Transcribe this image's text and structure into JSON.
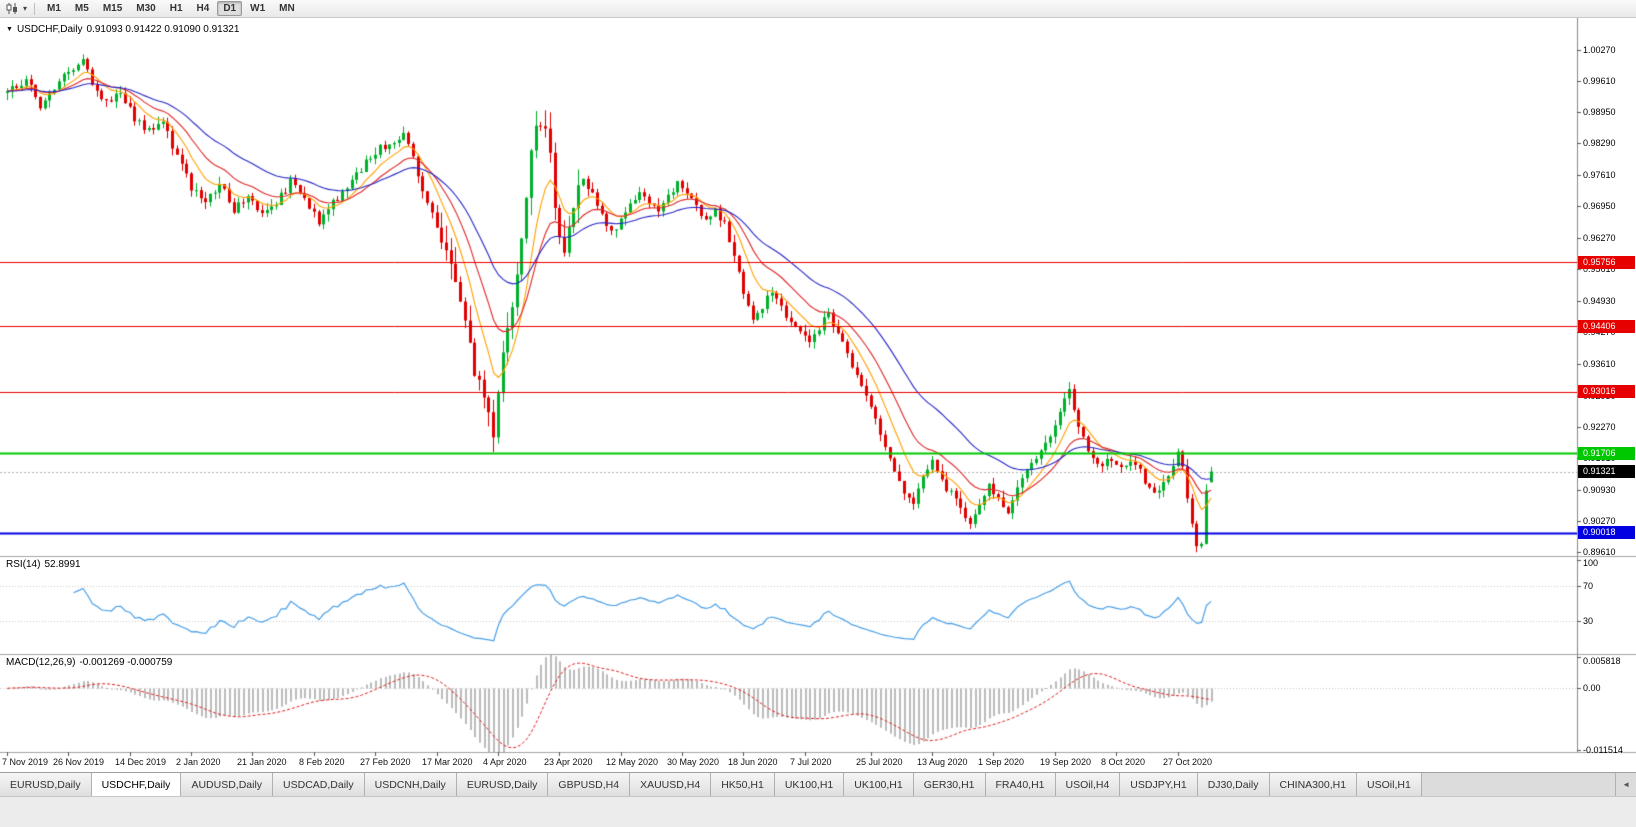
{
  "icons": {
    "chart_menu": "▼",
    "chart_type_caret": "▾",
    "tab_scroll_left": "◄"
  },
  "toolbar": {
    "timeframes": [
      "M1",
      "M5",
      "M15",
      "M30",
      "H1",
      "H4",
      "D1",
      "W1",
      "MN"
    ],
    "active_timeframe": "D1"
  },
  "chart": {
    "title": "USDCHF,Daily",
    "ohlc_text": "0.91093 0.91422 0.91090 0.91321",
    "ohlc": {
      "open": 0.91093,
      "high": 0.91422,
      "low": 0.9109,
      "close": 0.91321
    },
    "current_price_label": "0.91321",
    "price_axis_labels": [
      "1.00270",
      "0.99610",
      "0.98950",
      "0.98290",
      "0.97610",
      "0.96950",
      "0.96270",
      "0.95610",
      "0.94930",
      "0.94270",
      "0.93610",
      "0.92930",
      "0.92270",
      "0.91610",
      "0.90930",
      "0.90270",
      "0.89610"
    ],
    "hlines": [
      {
        "price": 0.95756,
        "label": "0.95756",
        "color": "#e60000",
        "width": 1
      },
      {
        "price": 0.94406,
        "label": "0.94406",
        "color": "#e60000",
        "width": 1
      },
      {
        "price": 0.93016,
        "label": "0.93016",
        "color": "#e60000",
        "width": 1
      },
      {
        "price": 0.91706,
        "label": "0.91706",
        "color": "#00c800",
        "width": 2
      },
      {
        "price": 0.90018,
        "label": "0.90018",
        "color": "#0000e0",
        "width": 2
      }
    ],
    "date_labels": [
      {
        "text": "7 Nov 2019",
        "candle": 0
      },
      {
        "text": "26 Nov 2019",
        "candle": 13
      },
      {
        "text": "14 Dec 2019",
        "candle": 26
      },
      {
        "text": "2 Jan 2020",
        "candle": 39
      },
      {
        "text": "21 Jan 2020",
        "candle": 52
      },
      {
        "text": "8 Feb 2020",
        "candle": 65
      },
      {
        "text": "27 Feb 2020",
        "candle": 78
      },
      {
        "text": "17 Mar 2020",
        "candle": 91
      },
      {
        "text": "4 Apr 2020",
        "candle": 104
      },
      {
        "text": "23 Apr 2020",
        "candle": 117
      },
      {
        "text": "12 May 2020",
        "candle": 130
      },
      {
        "text": "30 May 2020",
        "candle": 143
      },
      {
        "text": "18 Jun 2020",
        "candle": 156
      },
      {
        "text": "7 Jul 2020",
        "candle": 169
      },
      {
        "text": "25 Jul 2020",
        "candle": 183
      },
      {
        "text": "13 Aug 2020",
        "candle": 196
      },
      {
        "text": "1 Sep 2020",
        "candle": 209
      },
      {
        "text": "19 Sep 2020",
        "candle": 222
      },
      {
        "text": "8 Oct 2020",
        "candle": 235
      },
      {
        "text": "27 Oct 2020",
        "candle": 248
      }
    ]
  },
  "indicators": {
    "rsi": {
      "name": "RSI(14)",
      "value": "52.8991",
      "period": 14,
      "axis_labels": [
        "100",
        "70",
        "30"
      ],
      "levels": [
        70,
        30
      ]
    },
    "macd": {
      "name": "MACD(12,26,9)",
      "values_text": "-0.001269 -0.000759",
      "fast": 12,
      "slow": 26,
      "signal": 9,
      "axis_labels": [
        "0.005818",
        "0.00",
        "-0.011514"
      ]
    }
  },
  "tabs": {
    "items": [
      "EURUSD,Daily",
      "USDCHF,Daily",
      "AUDUSD,Daily",
      "USDCAD,Daily",
      "USDCNH,Daily",
      "EURUSD,Daily",
      "GBPUSD,H4",
      "XAUUSD,H4",
      "HK50,H1",
      "UK100,H1",
      "UK100,H1",
      "GER30,H1",
      "FRA40,H1",
      "USOil,H4",
      "USDJPY,H1",
      "DJ30,Daily",
      "CHINA300,H1",
      "USOil,H1"
    ],
    "active_index": 1
  },
  "colors": {
    "bull": "#00b02c",
    "bear": "#e00000",
    "rsi": "#4aa0e8",
    "macd_hist": "#bbbbbb",
    "macd_signal": "#e02020",
    "current_price_badge": "#000000"
  },
  "chart_data": {
    "type": "candlestick",
    "symbol": "USDCHF",
    "timeframe": "Daily",
    "num_candles": 256,
    "y_range_hint": [
      0.8951,
      1.0094
    ],
    "x_range": [
      "7 Nov 2019",
      "Nov 2020"
    ],
    "last_candle": {
      "open": 0.91093,
      "high": 0.91422,
      "low": 0.9109,
      "close": 0.91321
    },
    "moving_averages": [
      {
        "type": "ema",
        "period": 8,
        "color": "#ffa000"
      },
      {
        "type": "ema",
        "period": 16,
        "color": "#e02828"
      },
      {
        "type": "ema",
        "period": 32,
        "color": "#2828c8"
      }
    ],
    "price_path_anchors": [
      [
        0,
        0.9935
      ],
      [
        4,
        0.9965
      ],
      [
        7,
        0.9905
      ],
      [
        10,
        0.9945
      ],
      [
        13,
        0.9985
      ],
      [
        16,
        1.0005
      ],
      [
        18,
        0.996
      ],
      [
        21,
        0.9915
      ],
      [
        24,
        0.9935
      ],
      [
        27,
        0.988
      ],
      [
        30,
        0.9855
      ],
      [
        33,
        0.987
      ],
      [
        36,
        0.98
      ],
      [
        39,
        0.9735
      ],
      [
        42,
        0.97
      ],
      [
        45,
        0.9745
      ],
      [
        48,
        0.9685
      ],
      [
        51,
        0.9715
      ],
      [
        54,
        0.968
      ],
      [
        57,
        0.97
      ],
      [
        60,
        0.9745
      ],
      [
        63,
        0.971
      ],
      [
        66,
        0.966
      ],
      [
        69,
        0.97
      ],
      [
        72,
        0.9735
      ],
      [
        75,
        0.9775
      ],
      [
        78,
        0.981
      ],
      [
        81,
        0.983
      ],
      [
        84,
        0.9845
      ],
      [
        86,
        0.98
      ],
      [
        88,
        0.973
      ],
      [
        90,
        0.968
      ],
      [
        92,
        0.962
      ],
      [
        94,
        0.956
      ],
      [
        96,
        0.948
      ],
      [
        98,
        0.939
      ],
      [
        100,
        0.931
      ],
      [
        102,
        0.924
      ],
      [
        103,
        0.92
      ],
      [
        104,
        0.929
      ],
      [
        105,
        0.938
      ],
      [
        106,
        0.942
      ],
      [
        107,
        0.95
      ],
      [
        108,
        0.956
      ],
      [
        109,
        0.964
      ],
      [
        110,
        0.972
      ],
      [
        111,
        0.98
      ],
      [
        112,
        0.986
      ],
      [
        113,
        0.988
      ],
      [
        114,
        0.984
      ],
      [
        115,
        0.979
      ],
      [
        116,
        0.97
      ],
      [
        117,
        0.963
      ],
      [
        118,
        0.959
      ],
      [
        119,
        0.965
      ],
      [
        120,
        0.97
      ],
      [
        122,
        0.9755
      ],
      [
        124,
        0.972
      ],
      [
        126,
        0.968
      ],
      [
        128,
        0.964
      ],
      [
        130,
        0.9665
      ],
      [
        132,
        0.97
      ],
      [
        134,
        0.973
      ],
      [
        136,
        0.9705
      ],
      [
        138,
        0.968
      ],
      [
        140,
        0.9715
      ],
      [
        142,
        0.9745
      ],
      [
        144,
        0.972
      ],
      [
        146,
        0.969
      ],
      [
        148,
        0.9665
      ],
      [
        150,
        0.969
      ],
      [
        152,
        0.9655
      ],
      [
        154,
        0.959
      ],
      [
        156,
        0.9505
      ],
      [
        158,
        0.945
      ],
      [
        160,
        0.948
      ],
      [
        162,
        0.9515
      ],
      [
        164,
        0.948
      ],
      [
        166,
        0.945
      ],
      [
        168,
        0.943
      ],
      [
        170,
        0.9405
      ],
      [
        172,
        0.944
      ],
      [
        174,
        0.9465
      ],
      [
        176,
        0.942
      ],
      [
        178,
        0.938
      ],
      [
        180,
        0.934
      ],
      [
        182,
        0.929
      ],
      [
        184,
        0.924
      ],
      [
        186,
        0.918
      ],
      [
        188,
        0.913
      ],
      [
        190,
        0.909
      ],
      [
        192,
        0.907
      ],
      [
        194,
        0.912
      ],
      [
        196,
        0.915
      ],
      [
        198,
        0.911
      ],
      [
        200,
        0.9085
      ],
      [
        202,
        0.905
      ],
      [
        204,
        0.9025
      ],
      [
        206,
        0.906
      ],
      [
        208,
        0.91
      ],
      [
        210,
        0.907
      ],
      [
        212,
        0.904
      ],
      [
        214,
        0.909
      ],
      [
        216,
        0.913
      ],
      [
        218,
        0.916
      ],
      [
        220,
        0.919
      ],
      [
        222,
        0.923
      ],
      [
        224,
        0.929
      ],
      [
        225,
        0.93
      ],
      [
        226,
        0.926
      ],
      [
        228,
        0.92
      ],
      [
        230,
        0.916
      ],
      [
        232,
        0.9145
      ],
      [
        234,
        0.916
      ],
      [
        236,
        0.9145
      ],
      [
        238,
        0.916
      ],
      [
        240,
        0.913
      ],
      [
        242,
        0.91
      ],
      [
        244,
        0.9085
      ],
      [
        246,
        0.913
      ],
      [
        248,
        0.917
      ],
      [
        249,
        0.914
      ],
      [
        250,
        0.908
      ],
      [
        251,
        0.902
      ],
      [
        252,
        0.898
      ],
      [
        253,
        0.8975
      ],
      [
        254,
        0.91
      ],
      [
        255,
        0.9132
      ]
    ]
  }
}
